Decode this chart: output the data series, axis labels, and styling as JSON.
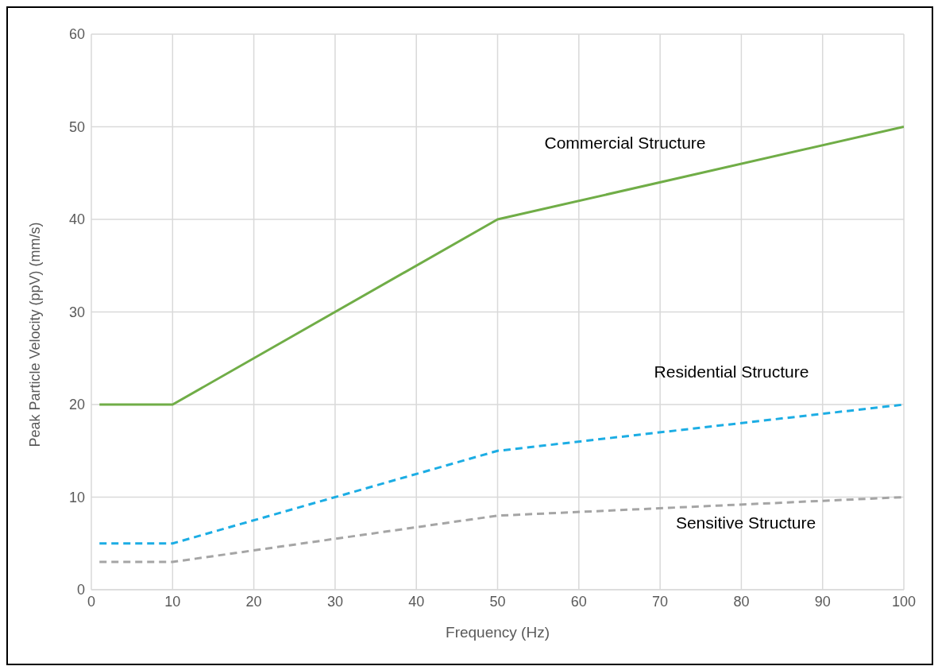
{
  "chart_data": {
    "type": "line",
    "xlabel": "Frequency (Hz)",
    "ylabel": "Peak Particle Velocity (ppV) (mm/s)",
    "x": [
      1,
      10,
      50,
      100
    ],
    "series": [
      {
        "name": "Commercial Structure",
        "color": "#70ad47",
        "values": [
          20,
          20,
          40,
          50
        ],
        "line_style": "solid"
      },
      {
        "name": "Residential Structure",
        "color": "#1cade4",
        "values": [
          5,
          5,
          15,
          20
        ],
        "line_style": "dashed"
      },
      {
        "name": "Sensitive Structure",
        "color": "#a5a5a5",
        "values": [
          3,
          3,
          8,
          10
        ],
        "line_style": "dashed"
      }
    ],
    "xlim": [
      0,
      100
    ],
    "xticks": [
      0,
      10,
      20,
      30,
      40,
      50,
      60,
      70,
      80,
      90,
      100
    ],
    "ylim": [
      0,
      60
    ],
    "yticks": [
      0,
      10,
      20,
      30,
      40,
      50,
      60
    ],
    "grid": true,
    "marker": "none"
  }
}
